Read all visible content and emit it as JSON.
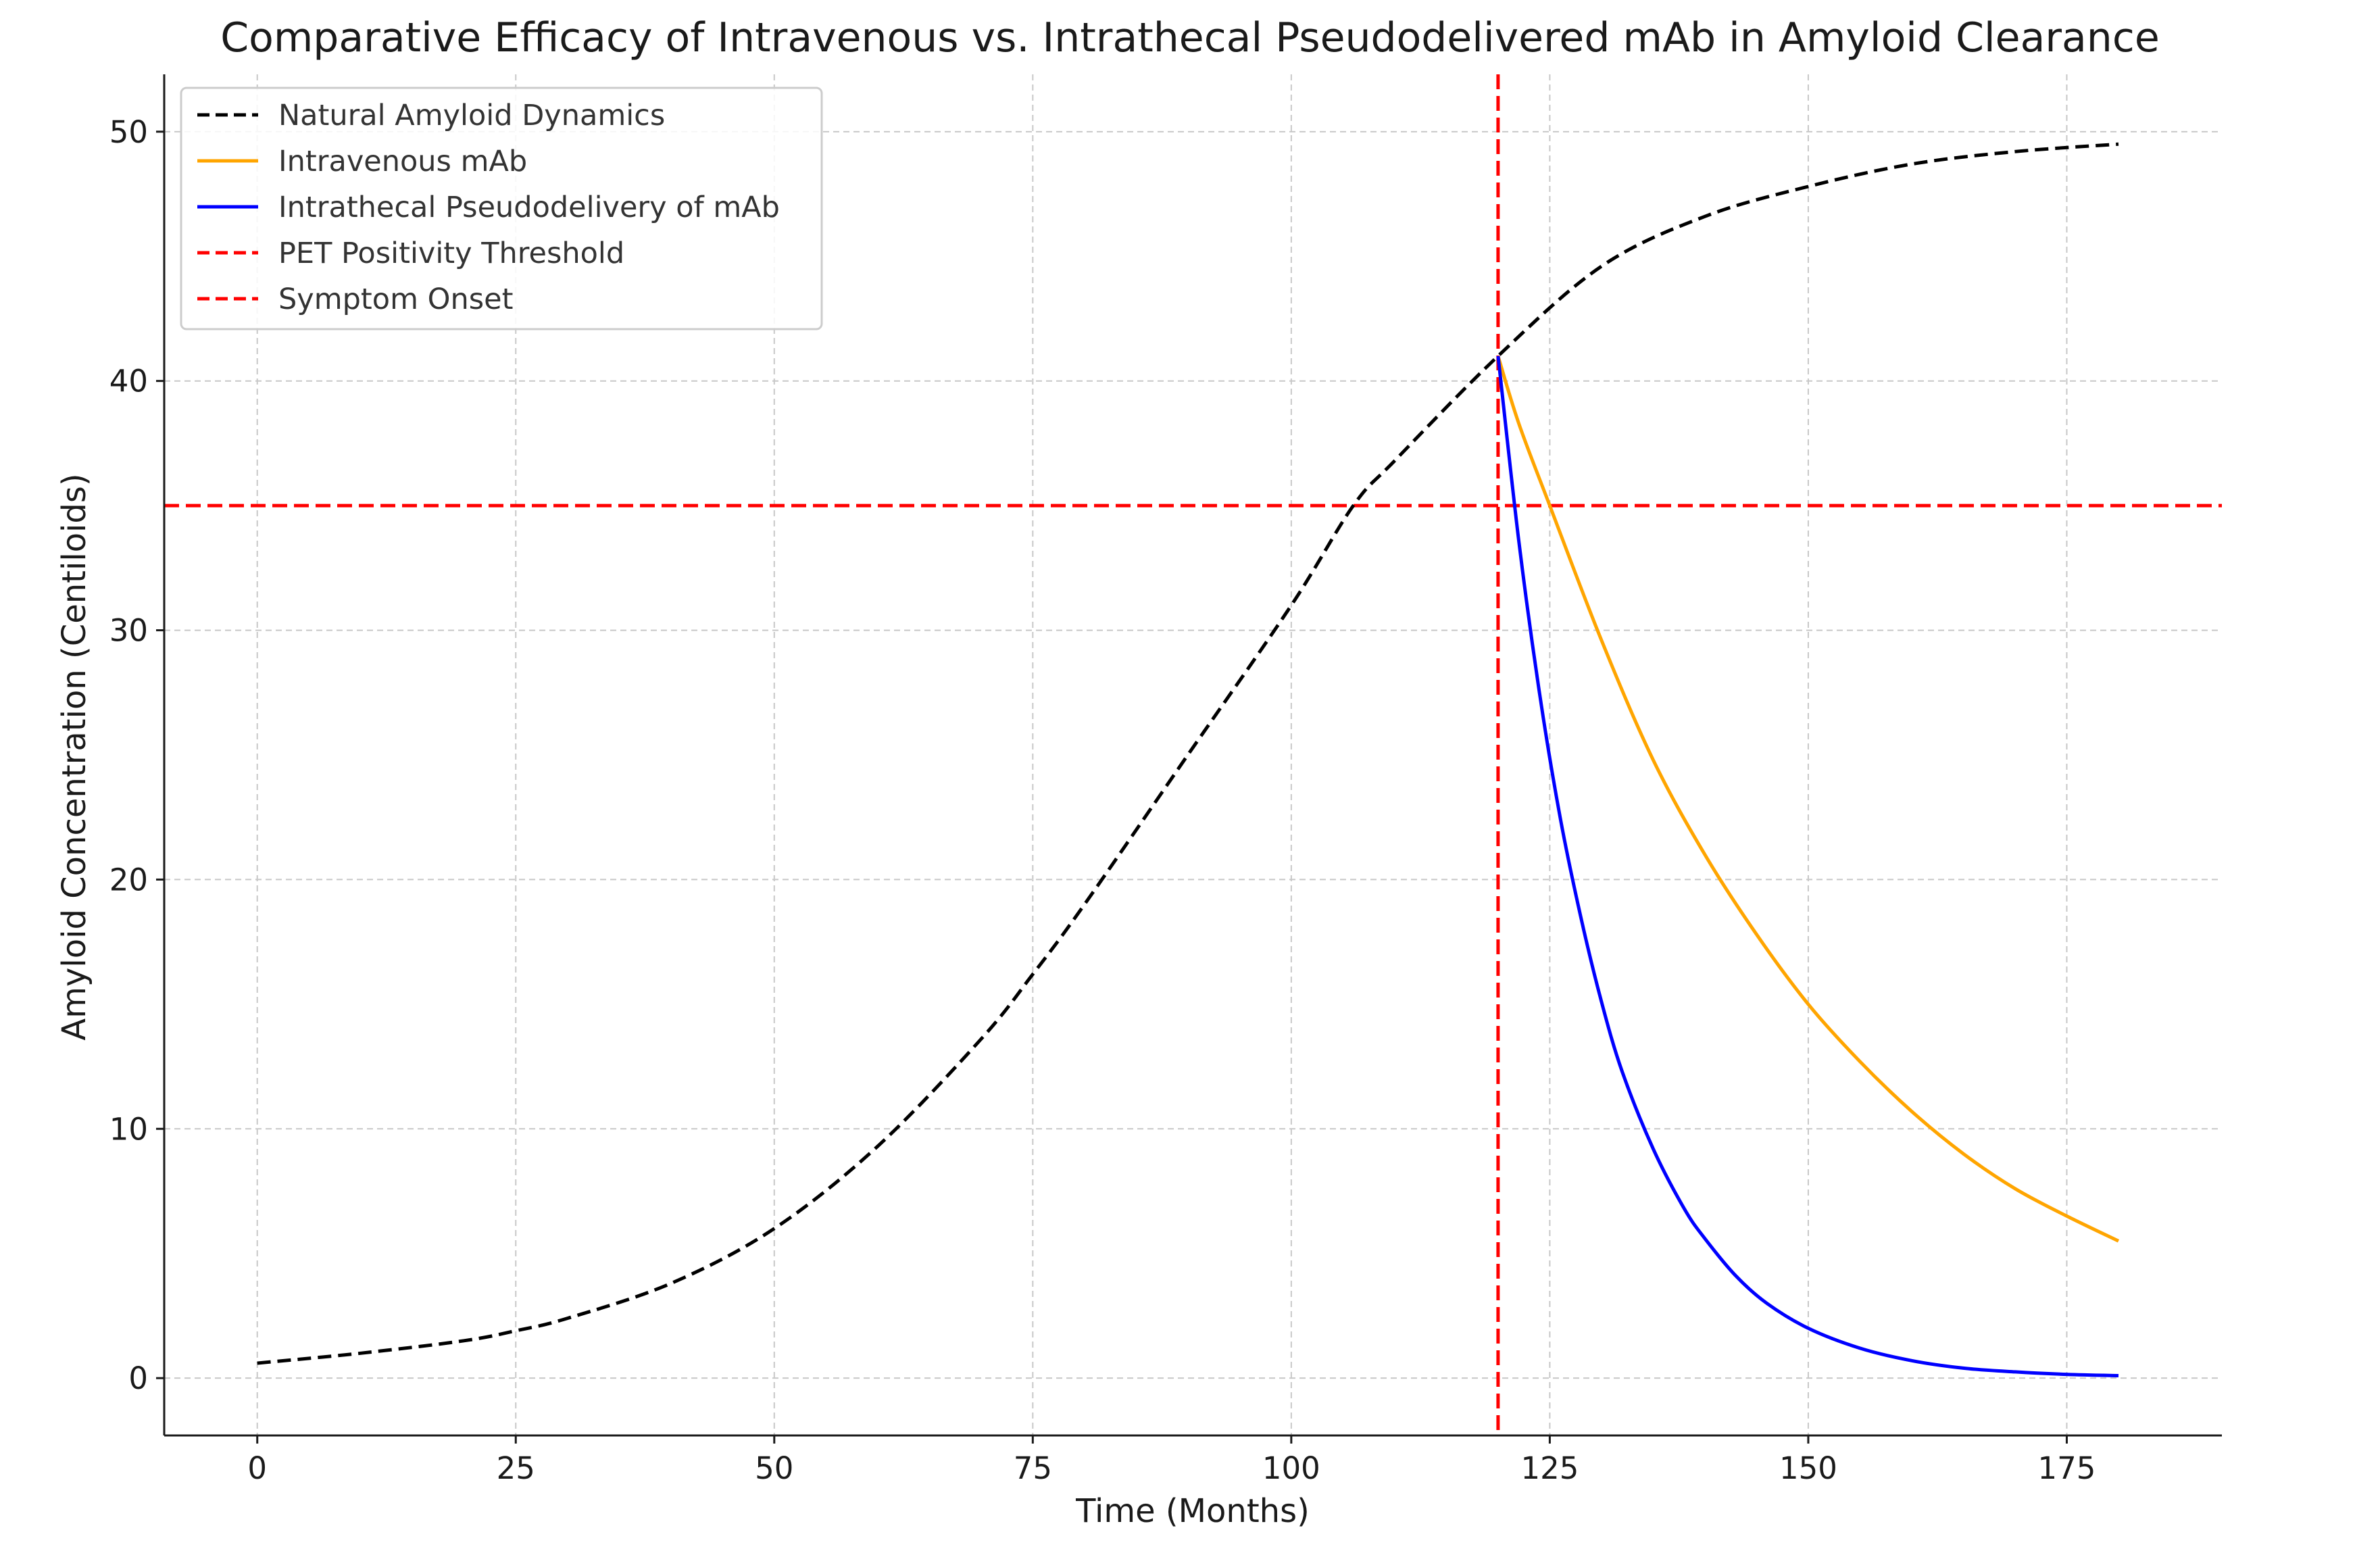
{
  "chart_data": {
    "type": "line",
    "title": "Comparative Efficacy of Intravenous vs. Intrathecal Pseudodelivered mAb in Amyloid Clearance",
    "xlabel": "Time (Months)",
    "ylabel": "Amyloid Concentration (Centiloids)",
    "xlim": [
      -9,
      190
    ],
    "ylim": [
      -2.3,
      52.3
    ],
    "xticks": [
      0,
      25,
      50,
      75,
      100,
      125,
      150,
      175
    ],
    "yticks": [
      0,
      10,
      20,
      30,
      40,
      50
    ],
    "grid": true,
    "legend_position": "top-left",
    "series": [
      {
        "name": "Natural Amyloid Dynamics",
        "color": "#000000",
        "style": "dashed",
        "x": [
          0,
          10,
          20,
          25,
          30,
          40,
          50,
          60,
          70,
          75,
          80,
          90,
          100,
          106,
          110,
          120,
          130,
          140,
          150,
          160,
          170,
          180
        ],
        "y": [
          0.6,
          1.0,
          1.5,
          1.9,
          2.4,
          3.8,
          6.0,
          9.3,
          13.6,
          16.2,
          19.0,
          25.0,
          31.0,
          35.0,
          36.8,
          41.0,
          44.6,
          46.6,
          47.8,
          48.7,
          49.2,
          49.5
        ]
      },
      {
        "name": "Intravenous mAb",
        "color": "#FFA500",
        "style": "solid",
        "x": [
          120,
          122,
          125,
          130,
          135,
          140,
          145,
          150,
          155,
          160,
          165,
          170,
          175,
          180
        ],
        "y": [
          41.0,
          38.3,
          35.0,
          29.6,
          24.8,
          21.0,
          17.8,
          15.0,
          12.7,
          10.7,
          9.0,
          7.6,
          6.5,
          5.5
        ]
      },
      {
        "name": "Intrathecal Pseudodelivery of mAb",
        "color": "#0000FF",
        "style": "solid",
        "x": [
          120,
          122,
          124,
          126,
          128,
          130,
          132,
          135,
          138,
          140,
          143,
          146,
          150,
          155,
          160,
          165,
          170,
          175,
          180
        ],
        "y": [
          41.0,
          33.6,
          27.5,
          22.5,
          18.5,
          15.1,
          12.3,
          9.2,
          6.8,
          5.6,
          4.1,
          3.0,
          2.0,
          1.2,
          0.7,
          0.4,
          0.25,
          0.15,
          0.1
        ]
      }
    ],
    "reference_lines": [
      {
        "name": "PET Positivity Threshold",
        "orientation": "horizontal",
        "value": 35,
        "color": "#FF0000",
        "style": "dashed"
      },
      {
        "name": "Symptom Onset",
        "orientation": "vertical",
        "value": 120,
        "color": "#FF0000",
        "style": "dashed"
      }
    ],
    "legend": [
      {
        "label": "Natural Amyloid Dynamics",
        "color": "#000000",
        "style": "dashed"
      },
      {
        "label": "Intravenous mAb",
        "color": "#FFA500",
        "style": "solid"
      },
      {
        "label": "Intrathecal Pseudodelivery of mAb",
        "color": "#0000FF",
        "style": "solid"
      },
      {
        "label": "PET Positivity Threshold",
        "color": "#FF0000",
        "style": "dashed"
      },
      {
        "label": "Symptom Onset",
        "color": "#FF0000",
        "style": "dashed"
      }
    ]
  }
}
